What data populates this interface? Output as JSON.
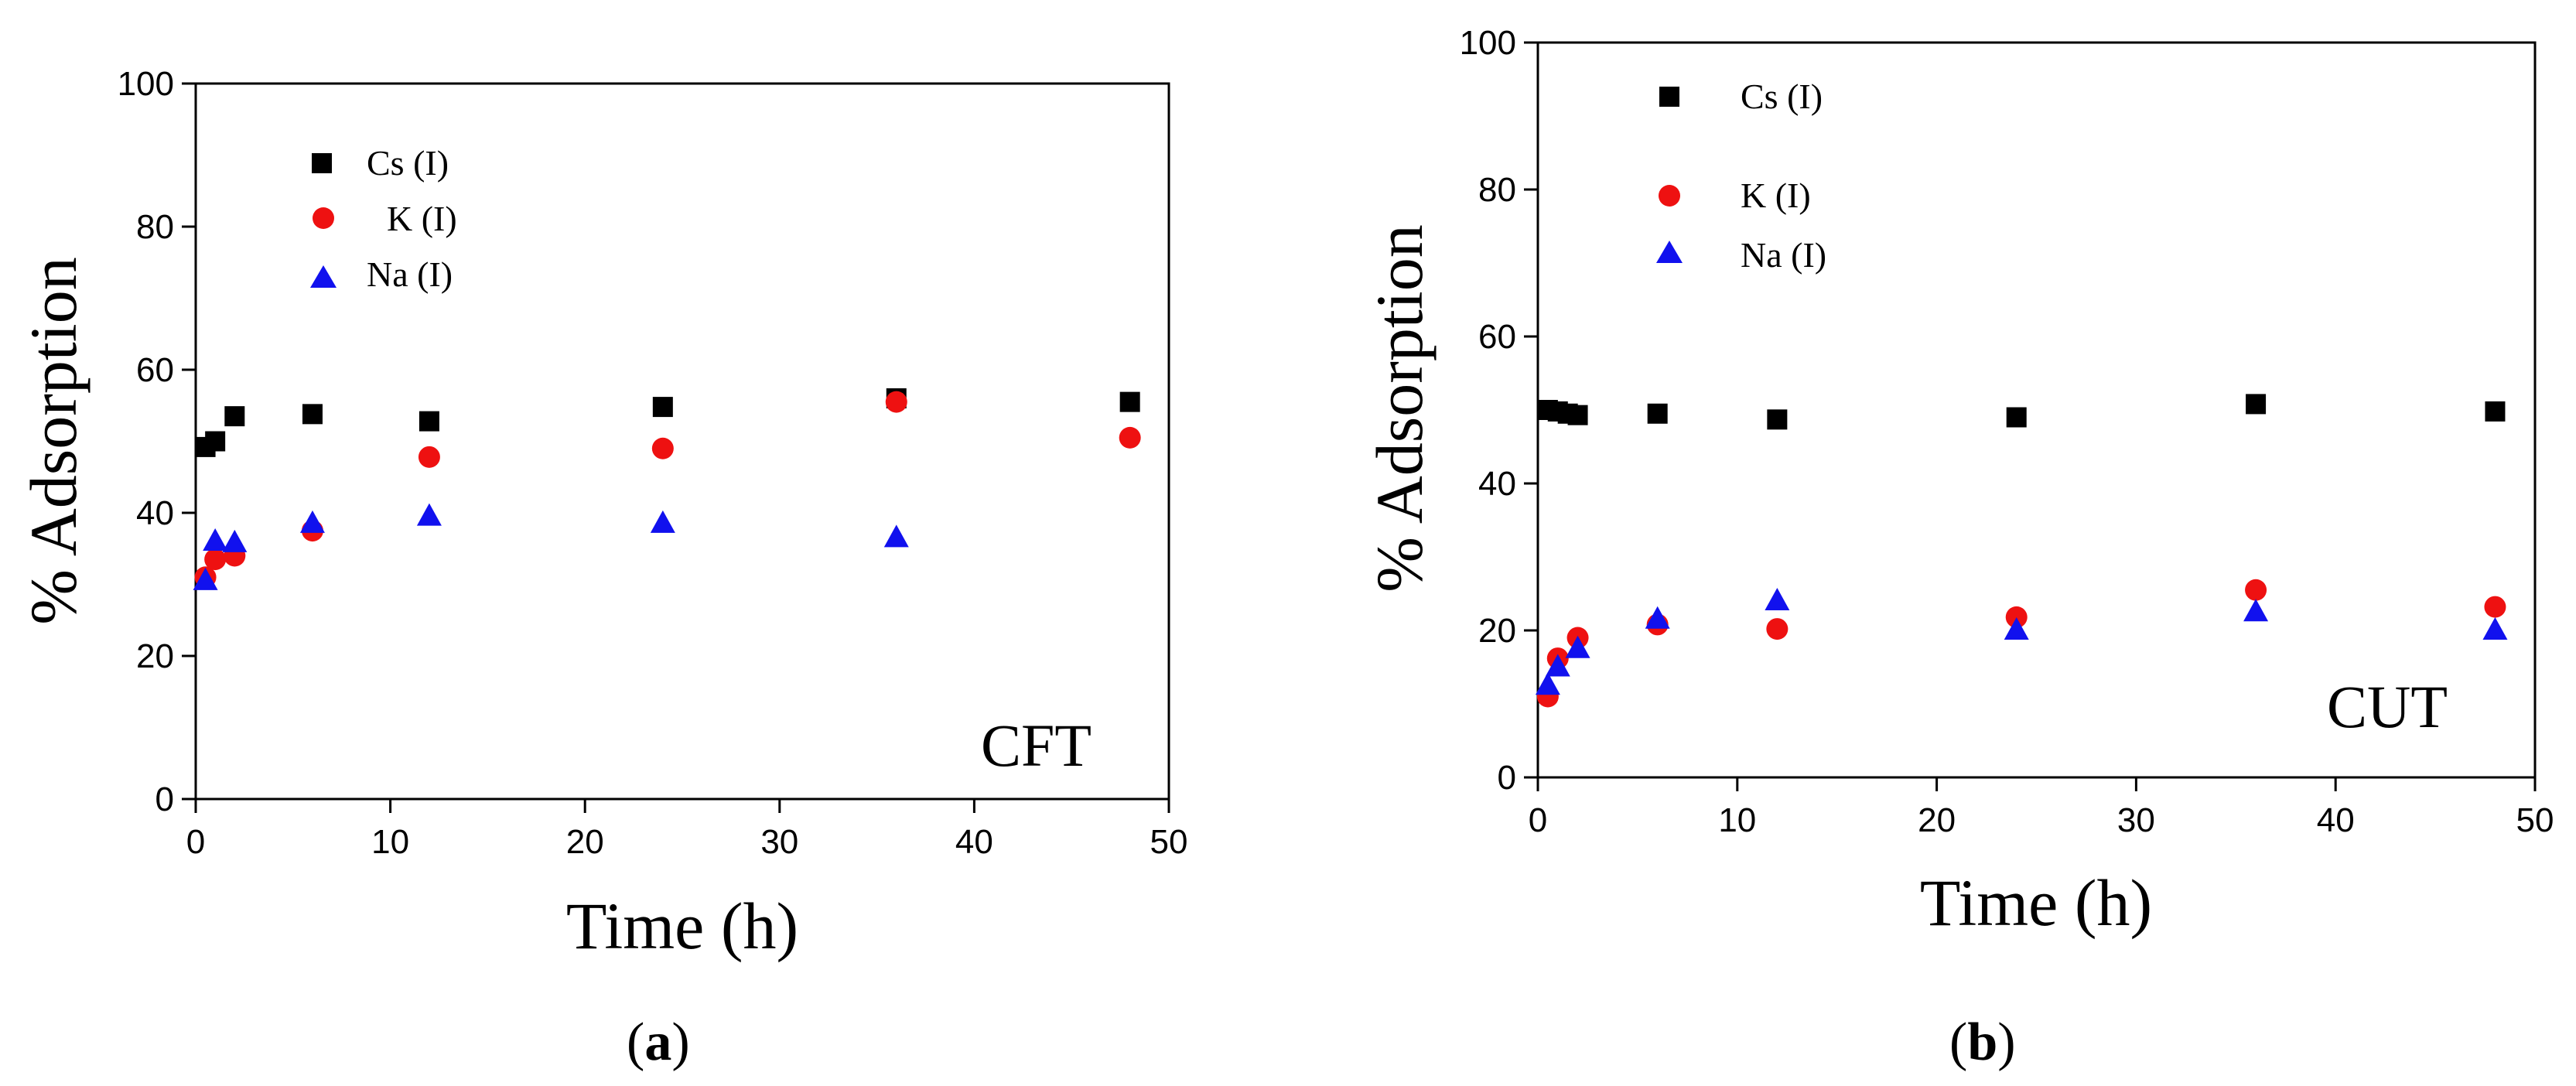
{
  "colors": {
    "cs": "#000000",
    "k": "#ee1111",
    "na": "#1111ee"
  },
  "chart_data": [
    {
      "type": "scatter",
      "panel_label": "a",
      "annotation": "CFT",
      "xlabel": "Time  (h)",
      "ylabel": "% Adsorption",
      "xlim": [
        0,
        50
      ],
      "ylim": [
        0,
        100
      ],
      "xticks": [
        "0",
        "10",
        "20",
        "30",
        "40",
        "50"
      ],
      "yticks": [
        "0",
        "20",
        "40",
        "60",
        "80",
        "100"
      ],
      "legend_position": "top-left",
      "series": [
        {
          "name": "Cs  (I)",
          "marker": "square",
          "color": "#000000",
          "x": [
            0.5,
            1,
            2,
            6,
            12,
            24,
            36,
            48
          ],
          "y": [
            49.2,
            50,
            53.5,
            53.8,
            52.8,
            54.8,
            56,
            55.5
          ]
        },
        {
          "name": "K  (I)",
          "marker": "circle",
          "color": "#ee1111",
          "x": [
            0.5,
            1,
            2,
            6,
            12,
            24,
            36,
            48
          ],
          "y": [
            31,
            33.5,
            34,
            37.5,
            47.8,
            49,
            55.5,
            50.5
          ]
        },
        {
          "name": "Na (I)",
          "marker": "triangle",
          "color": "#1111ee",
          "x": [
            0.5,
            1,
            2,
            6,
            12,
            24,
            36
          ],
          "y": [
            30.5,
            36,
            35.8,
            38.5,
            39.5,
            38.5,
            36.5
          ]
        }
      ]
    },
    {
      "type": "scatter",
      "panel_label": "b",
      "annotation": "CUT",
      "xlabel": "Time  (h)",
      "ylabel": "% Adsorption",
      "xlim": [
        0,
        50
      ],
      "ylim": [
        0,
        100
      ],
      "xticks": [
        "0",
        "10",
        "20",
        "30",
        "40",
        "50"
      ],
      "yticks": [
        "0",
        "20",
        "40",
        "60",
        "80",
        "100"
      ],
      "legend_position": "top-left",
      "series": [
        {
          "name": "Cs (I)",
          "marker": "square",
          "color": "#000000",
          "x": [
            0.5,
            1,
            1.5,
            2,
            6,
            12,
            24,
            36,
            48
          ],
          "y": [
            50,
            49.8,
            49.5,
            49.3,
            49.5,
            48.7,
            49,
            50.8,
            49.8
          ]
        },
        {
          "name": "K   (I)",
          "marker": "circle",
          "color": "#ee1111",
          "x": [
            0.5,
            1,
            2,
            6,
            12,
            24,
            36,
            48
          ],
          "y": [
            11,
            16.2,
            19,
            20.8,
            20.2,
            21.8,
            25.5,
            23.2
          ]
        },
        {
          "name": "Na (I)",
          "marker": "triangle",
          "color": "#1111ee",
          "x": [
            0.5,
            1,
            2,
            6,
            12,
            24,
            36,
            48
          ],
          "y": [
            12.5,
            15,
            17.5,
            21.5,
            24,
            20,
            22.5,
            20
          ]
        }
      ]
    }
  ]
}
